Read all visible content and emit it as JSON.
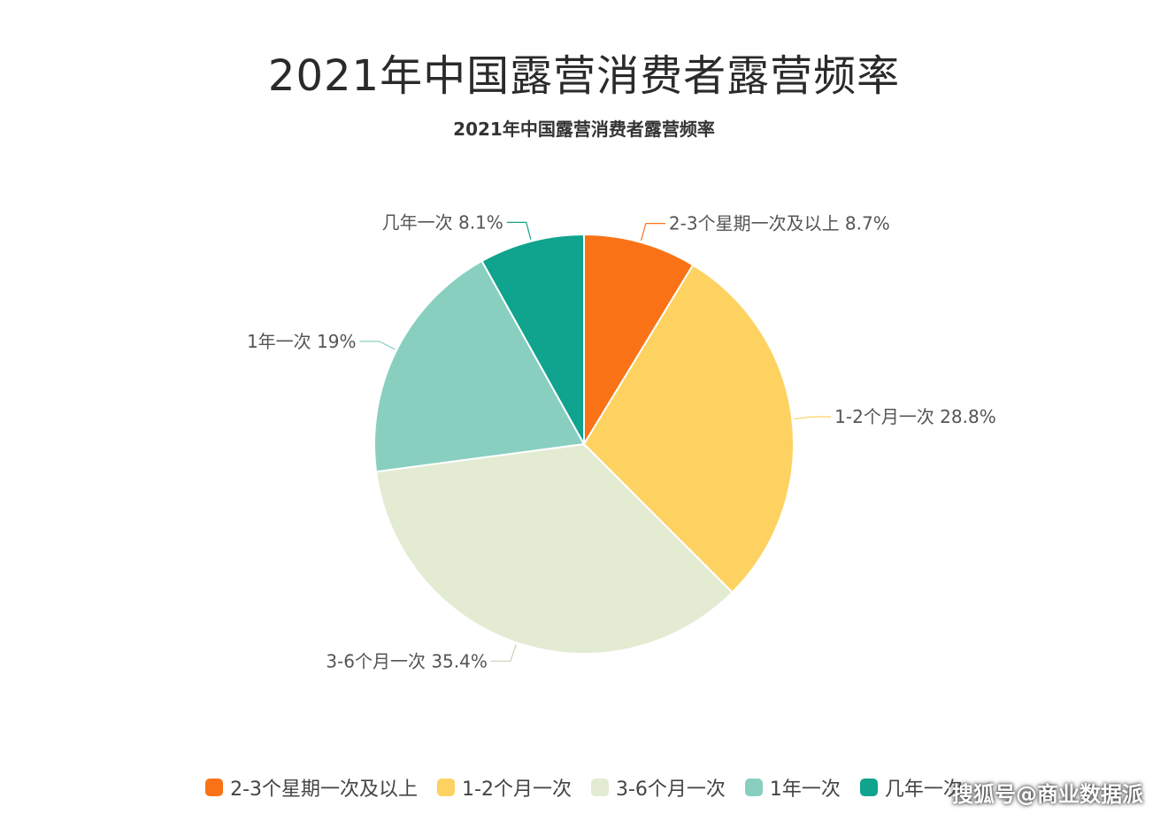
{
  "header": {
    "title": "2021年中国露营消费者露营频率",
    "subtitle": "2021年中国露营消费者露营频率"
  },
  "chart_data": {
    "type": "pie",
    "title": "2021年中国露营消费者露营频率",
    "start_angle_deg": 0,
    "direction": "clockwise",
    "slices": [
      {
        "label": "2-3个星期一次及以上",
        "value": 8.7,
        "display": "2-3个星期一次及以上 8.7%",
        "color": "#f97316"
      },
      {
        "label": "1-2个月一次",
        "value": 28.8,
        "display": "1-2个月一次 28.8%",
        "color": "#fdd261"
      },
      {
        "label": "3-6个月一次",
        "value": 35.4,
        "display": "3-6个月一次 35.4%",
        "color": "#e3ebd2"
      },
      {
        "label": "1年一次",
        "value": 19,
        "display": "1年一次 19%",
        "color": "#88cfc0"
      },
      {
        "label": "几年一次",
        "value": 8.1,
        "display": "几年一次 8.1%",
        "color": "#10a38d"
      }
    ],
    "legend_position": "bottom"
  },
  "watermark": "搜狐号@商业数据派"
}
